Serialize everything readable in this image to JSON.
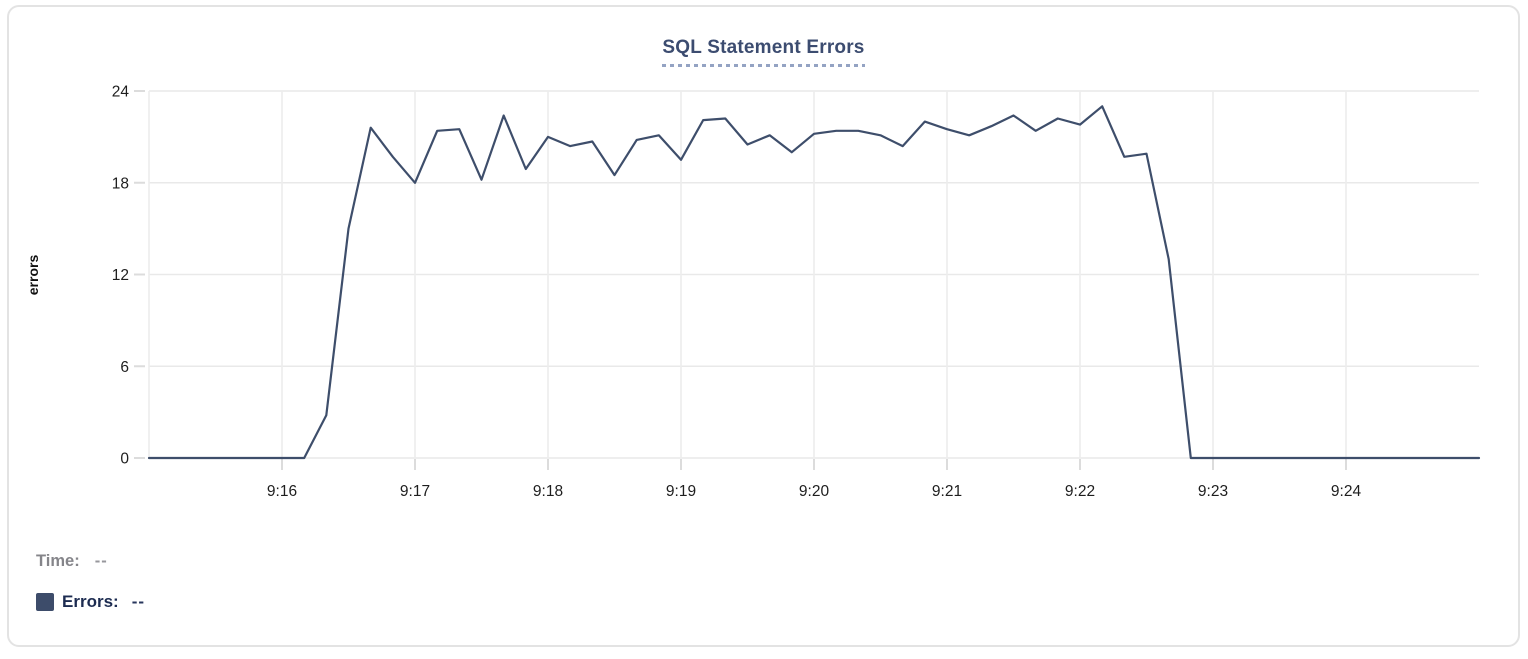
{
  "chart_data": {
    "type": "line",
    "title": "SQL Statement Errors",
    "ylabel": "errors",
    "ylim": [
      0,
      24
    ],
    "y_ticks": [
      0,
      6,
      12,
      18,
      24
    ],
    "x_ticks": [
      "9:16",
      "9:17",
      "9:18",
      "9:19",
      "9:20",
      "9:21",
      "9:22",
      "9:23",
      "9:24"
    ],
    "x_start": "9:15:00",
    "x_end": "9:25:00",
    "grid": true,
    "legend_position": "bottom-left",
    "line_color": "#3e4e6b",
    "series": [
      {
        "name": "Errors",
        "points": [
          [
            "9:15:00",
            0
          ],
          [
            "9:15:10",
            0
          ],
          [
            "9:15:20",
            0
          ],
          [
            "9:15:30",
            0
          ],
          [
            "9:15:40",
            0
          ],
          [
            "9:15:50",
            0
          ],
          [
            "9:16:00",
            0
          ],
          [
            "9:16:10",
            0
          ],
          [
            "9:16:20",
            2.8
          ],
          [
            "9:16:30",
            15
          ],
          [
            "9:16:40",
            21.6
          ],
          [
            "9:16:50",
            19.7
          ],
          [
            "9:17:00",
            18
          ],
          [
            "9:17:10",
            21.4
          ],
          [
            "9:17:20",
            21.5
          ],
          [
            "9:17:30",
            18.2
          ],
          [
            "9:17:40",
            22.4
          ],
          [
            "9:17:50",
            18.9
          ],
          [
            "9:18:00",
            21
          ],
          [
            "9:18:10",
            20.4
          ],
          [
            "9:18:20",
            20.7
          ],
          [
            "9:18:30",
            18.5
          ],
          [
            "9:18:40",
            20.8
          ],
          [
            "9:18:50",
            21.1
          ],
          [
            "9:19:00",
            19.5
          ],
          [
            "9:19:10",
            22.1
          ],
          [
            "9:19:20",
            22.2
          ],
          [
            "9:19:30",
            20.5
          ],
          [
            "9:19:40",
            21.1
          ],
          [
            "9:19:50",
            20
          ],
          [
            "9:20:00",
            21.2
          ],
          [
            "9:20:10",
            21.4
          ],
          [
            "9:20:20",
            21.4
          ],
          [
            "9:20:30",
            21.1
          ],
          [
            "9:20:40",
            20.4
          ],
          [
            "9:20:50",
            22
          ],
          [
            "9:21:00",
            21.5
          ],
          [
            "9:21:10",
            21.1
          ],
          [
            "9:21:20",
            21.7
          ],
          [
            "9:21:30",
            22.4
          ],
          [
            "9:21:40",
            21.4
          ],
          [
            "9:21:50",
            22.2
          ],
          [
            "9:22:00",
            21.8
          ],
          [
            "9:22:10",
            23
          ],
          [
            "9:22:20",
            19.7
          ],
          [
            "9:22:30",
            19.9
          ],
          [
            "9:22:40",
            13
          ],
          [
            "9:22:50",
            0
          ],
          [
            "9:23:00",
            0
          ],
          [
            "9:23:10",
            0
          ],
          [
            "9:23:20",
            0
          ],
          [
            "9:23:30",
            0
          ],
          [
            "9:23:40",
            0
          ],
          [
            "9:23:50",
            0
          ],
          [
            "9:24:00",
            0
          ],
          [
            "9:24:10",
            0
          ],
          [
            "9:24:20",
            0
          ],
          [
            "9:24:30",
            0
          ],
          [
            "9:24:40",
            0
          ],
          [
            "9:24:50",
            0
          ],
          [
            "9:25:00",
            0
          ]
        ]
      }
    ]
  },
  "legend": {
    "rows": [
      {
        "label": "Time:",
        "value": "--"
      },
      {
        "label": "Errors:",
        "value": "--",
        "swatch": "#3d4c6a"
      }
    ]
  }
}
